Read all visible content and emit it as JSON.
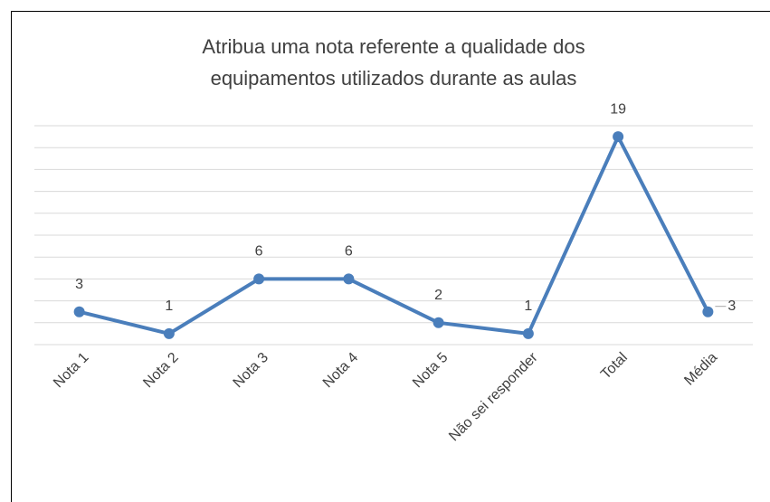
{
  "chart_data": {
    "type": "line",
    "title": "Atribua uma nota referente a qualidade dos equipamentos utilizados durante as aulas",
    "categories": [
      "Nota 1",
      "Nota 2",
      "Nota 3",
      "Nota 4",
      "Nota 5",
      "Não sei responder",
      "Total",
      "Média"
    ],
    "values": [
      3,
      1,
      6,
      6,
      2,
      1,
      19,
      3
    ],
    "color": "#4a7ebb",
    "ylim": [
      0,
      20
    ],
    "yticks": [
      0,
      2,
      4,
      6,
      8,
      10,
      12,
      14,
      16,
      18,
      20
    ],
    "grid": true
  }
}
